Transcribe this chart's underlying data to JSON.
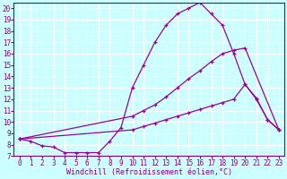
{
  "xlabel": "Windchill (Refroidissement éolien,°C)",
  "bg_color": "#ccffff",
  "grid_color": "#ffffff",
  "line_color": "#990099",
  "xlim": [
    -0.5,
    23.5
  ],
  "ylim": [
    7,
    20.5
  ],
  "xticks": [
    0,
    1,
    2,
    3,
    4,
    5,
    6,
    7,
    8,
    9,
    10,
    11,
    12,
    13,
    14,
    15,
    16,
    17,
    18,
    19,
    20,
    21,
    22,
    23
  ],
  "yticks": [
    7,
    8,
    9,
    10,
    11,
    12,
    13,
    14,
    15,
    16,
    17,
    18,
    19,
    20
  ],
  "line1_x": [
    0,
    1,
    2,
    3,
    4,
    5,
    6,
    7,
    8,
    9,
    10,
    11,
    12,
    13,
    14,
    15,
    16,
    17,
    18,
    19,
    20,
    21,
    22,
    23
  ],
  "line1_y": [
    8.5,
    8.3,
    7.9,
    7.8,
    7.3,
    7.3,
    7.3,
    7.3,
    8.3,
    9.5,
    13.0,
    15.0,
    17.0,
    18.5,
    19.5,
    20.0,
    20.5,
    19.5,
    18.5,
    16.0,
    13.3,
    12.0,
    10.2,
    9.3
  ],
  "line2_x": [
    0,
    10,
    11,
    12,
    13,
    14,
    15,
    16,
    17,
    18,
    19,
    20,
    23
  ],
  "line2_y": [
    8.5,
    10.5,
    11.0,
    11.5,
    12.2,
    13.0,
    13.8,
    14.5,
    15.3,
    16.0,
    16.3,
    16.5,
    9.3
  ],
  "line3_x": [
    0,
    10,
    11,
    12,
    13,
    14,
    15,
    16,
    17,
    18,
    19,
    20,
    21,
    22,
    23
  ],
  "line3_y": [
    8.5,
    9.3,
    9.6,
    9.9,
    10.2,
    10.5,
    10.8,
    11.1,
    11.4,
    11.7,
    12.0,
    13.3,
    12.1,
    10.2,
    9.3
  ],
  "font_size_label": 6,
  "font_size_tick": 5.5
}
